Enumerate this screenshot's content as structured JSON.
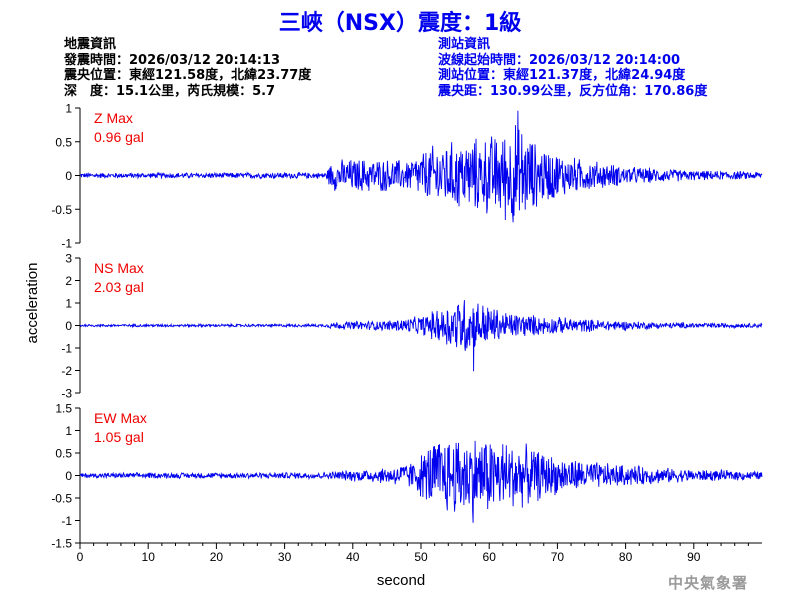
{
  "title": "三峽（NSX）震度：1級",
  "quake_info": {
    "heading": "地震資訊",
    "time": "發震時間：2026/03/12 20:14:13",
    "epicenter": "震央位置：東經121.58度，北緯23.77度",
    "depth_mag": "深　度：15.1公里，芮氏規模：5.7"
  },
  "station_info": {
    "heading": "測站資訊",
    "wave_start": "波線起始時間：2026/03/12 20:14:00",
    "location": "測站位置：東經121.37度，北緯24.94度",
    "distance": "震央距：130.99公里，反方位角：170.86度"
  },
  "footer": "中央氣象署",
  "colors": {
    "trace": "#0000ee",
    "label": "#ee0000",
    "title": "#0000ee",
    "axis": "#000000"
  },
  "chart_data": {
    "type": "line",
    "xlabel": "second",
    "ylabel": "acceleration",
    "xlim": [
      0,
      100
    ],
    "xticks": [
      0,
      10,
      20,
      30,
      40,
      50,
      60,
      70,
      80,
      90
    ],
    "grid": false,
    "panels": [
      {
        "component": "Z",
        "max_label": "Z Max",
        "max_value_label": "0.96 gal",
        "max_value": 0.96,
        "ylim": [
          -1,
          1
        ],
        "yticks": [
          -1,
          -0.5,
          0,
          0.5,
          1
        ],
        "amp_envelope": {
          "x": [
            0,
            36,
            37,
            42,
            48,
            52,
            58,
            62,
            64,
            67,
            72,
            80,
            90,
            100
          ],
          "y": [
            0.04,
            0.05,
            0.25,
            0.28,
            0.25,
            0.5,
            0.6,
            0.7,
            0.9,
            0.5,
            0.3,
            0.15,
            0.08,
            0.06
          ]
        }
      },
      {
        "component": "NS",
        "max_label": "NS Max",
        "max_value_label": "2.03 gal",
        "max_value": 2.03,
        "ylim": [
          -3,
          3
        ],
        "yticks": [
          -3,
          -2,
          -1,
          0,
          1,
          2,
          3
        ],
        "amp_envelope": {
          "x": [
            0,
            36,
            37,
            45,
            50,
            53,
            56,
            58,
            62,
            68,
            75,
            85,
            100
          ],
          "y": [
            0.06,
            0.07,
            0.18,
            0.25,
            0.45,
            0.9,
            1.5,
            1.3,
            0.7,
            0.45,
            0.3,
            0.15,
            0.1
          ]
        }
      },
      {
        "component": "EW",
        "max_label": "EW Max",
        "max_value_label": "1.05 gal",
        "max_value": 1.05,
        "ylim": [
          -1.5,
          1.5
        ],
        "yticks": [
          -1.5,
          -1,
          -0.5,
          0,
          0.5,
          1,
          1.5
        ],
        "amp_envelope": {
          "x": [
            0,
            36,
            40,
            45,
            49,
            52,
            56,
            60,
            64,
            70,
            78,
            88,
            100
          ],
          "y": [
            0.06,
            0.08,
            0.14,
            0.2,
            0.35,
            0.9,
            1.0,
            0.95,
            0.8,
            0.45,
            0.28,
            0.16,
            0.1
          ]
        }
      }
    ]
  }
}
